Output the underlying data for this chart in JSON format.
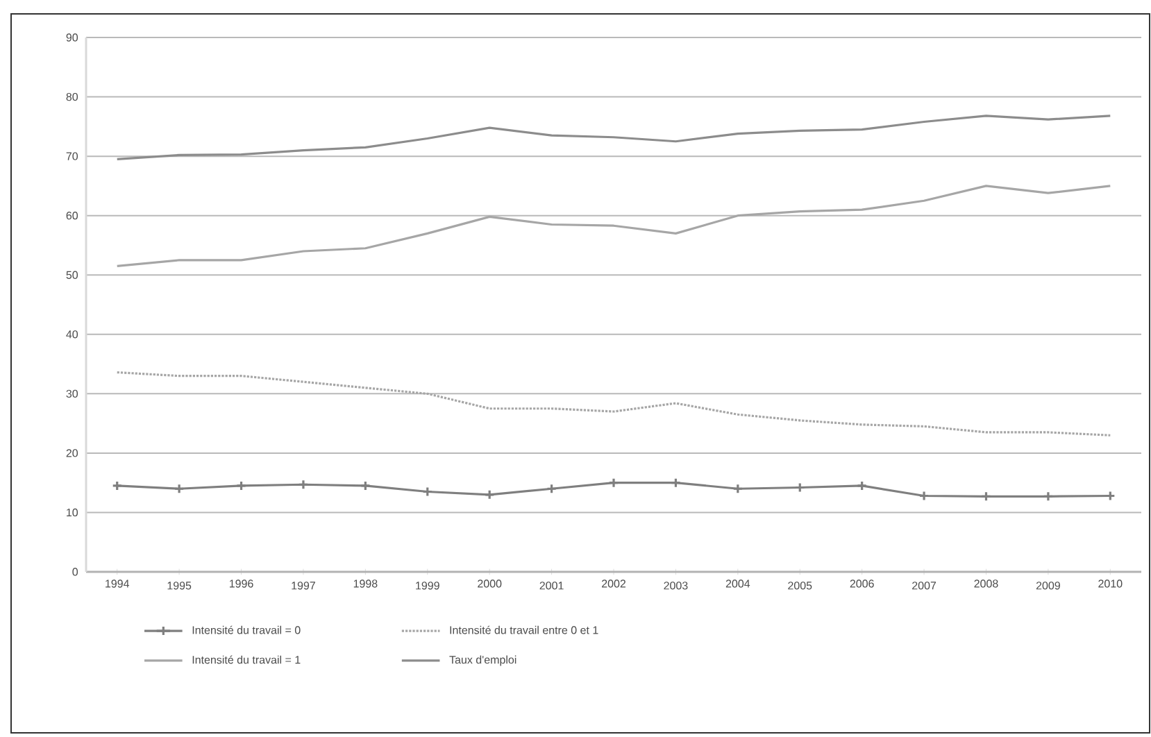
{
  "chart_data": {
    "type": "line",
    "categories": [
      "1994",
      "1995",
      "1996",
      "1997",
      "1998",
      "1999",
      "2000",
      "2001",
      "2002",
      "2003",
      "2004",
      "2005",
      "2006",
      "2007",
      "2008",
      "2009",
      "2010"
    ],
    "series": [
      {
        "name": "Intensité du travail = 0",
        "color": "#7f7f7f",
        "marker": "cross",
        "line_style": "solid",
        "values": [
          14.5,
          14,
          14.5,
          14.7,
          14.5,
          13.5,
          13,
          14,
          15,
          15,
          14,
          14.2,
          14.5,
          12.8,
          12.7,
          12.7,
          12.8
        ]
      },
      {
        "name": "Intensité du travail entre 0 et 1",
        "color": "#a6a6a6",
        "marker": "none",
        "line_style": "dotted",
        "values": [
          33.6,
          33,
          33,
          32,
          31,
          30,
          27.5,
          27.5,
          27,
          28.4,
          26.5,
          25.5,
          24.8,
          24.5,
          23.5,
          23.5,
          23
        ]
      },
      {
        "name": "Intensité du travail = 1",
        "color": "#a6a6a6",
        "marker": "none",
        "line_style": "solid",
        "values": [
          51.5,
          52.5,
          52.5,
          54,
          54.5,
          57,
          59.8,
          58.5,
          58.3,
          57,
          60,
          60.7,
          61,
          62.5,
          65,
          63.8,
          65
        ]
      },
      {
        "name": "Taux d'emploi",
        "color": "#8c8c8c",
        "marker": "none",
        "line_style": "solid",
        "values": [
          69.5,
          70.2,
          70.3,
          71,
          71.5,
          73,
          74.8,
          73.5,
          73.2,
          72.5,
          73.8,
          74.3,
          74.5,
          75.8,
          76.8,
          76.2,
          76.8
        ]
      }
    ],
    "ylim": [
      0,
      90
    ],
    "yticks": [
      0,
      10,
      20,
      30,
      40,
      50,
      60,
      70,
      80,
      90
    ],
    "grid": "y",
    "legend": "bottom"
  }
}
